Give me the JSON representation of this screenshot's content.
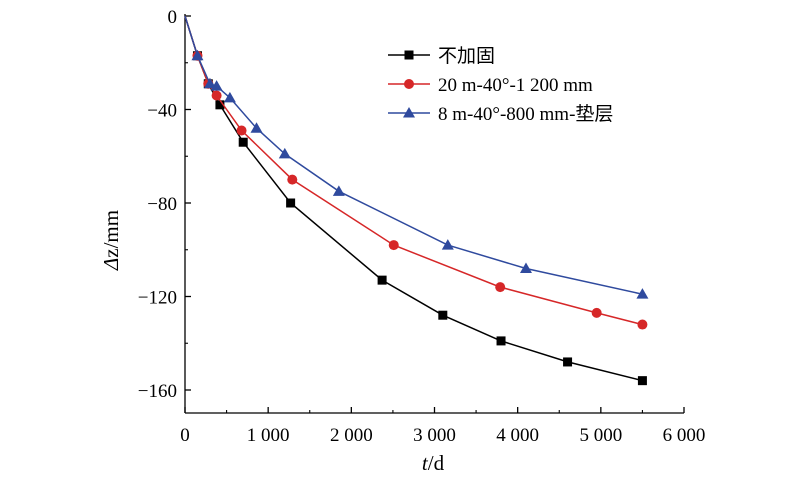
{
  "chart_data": {
    "type": "line",
    "xlabel_italic": "t",
    "xlabel_unit": "/d",
    "ylabel_italic": "Δ",
    "ylabel_rest": "z/mm",
    "xlim": [
      0,
      6000
    ],
    "ylim": [
      -170,
      0
    ],
    "x_ticks": [
      0,
      1000,
      2000,
      3000,
      4000,
      5000,
      6000
    ],
    "x_tick_labels": [
      "0",
      "1 000",
      "2 000",
      "3 000",
      "4 000",
      "5 000",
      "6 000"
    ],
    "y_ticks": [
      0,
      -40,
      -80,
      -120,
      -160
    ],
    "y_tick_labels": [
      "0",
      "−40",
      "−80",
      "−120",
      "−160"
    ],
    "grid": false,
    "legend_position": "top-right",
    "series": [
      {
        "name": "不加固",
        "color": "#000000",
        "marker": "square",
        "x": [
          0,
          150,
          280,
          420,
          700,
          1270,
          2370,
          3100,
          3800,
          4600,
          5500
        ],
        "y": [
          0,
          -17,
          -29,
          -38,
          -54,
          -80,
          -113,
          -128,
          -139,
          -148,
          -156
        ]
      },
      {
        "name": "20 m-40°-1 200 mm",
        "color": "#d62728",
        "marker": "circle",
        "x": [
          0,
          150,
          280,
          380,
          680,
          1290,
          2510,
          3790,
          4950,
          5500
        ],
        "y": [
          0,
          -17,
          -29,
          -34,
          -49,
          -70,
          -98,
          -116,
          -127,
          -132
        ]
      },
      {
        "name": "8 m-40°-800 mm-垫层",
        "color": "#2f4a9e",
        "marker": "triangle",
        "x": [
          0,
          150,
          300,
          380,
          540,
          860,
          1200,
          1850,
          3160,
          4100,
          5500
        ],
        "y": [
          0,
          -17,
          -29,
          -30,
          -35,
          -48,
          -59,
          -75,
          -98,
          -108,
          -119
        ]
      }
    ]
  }
}
